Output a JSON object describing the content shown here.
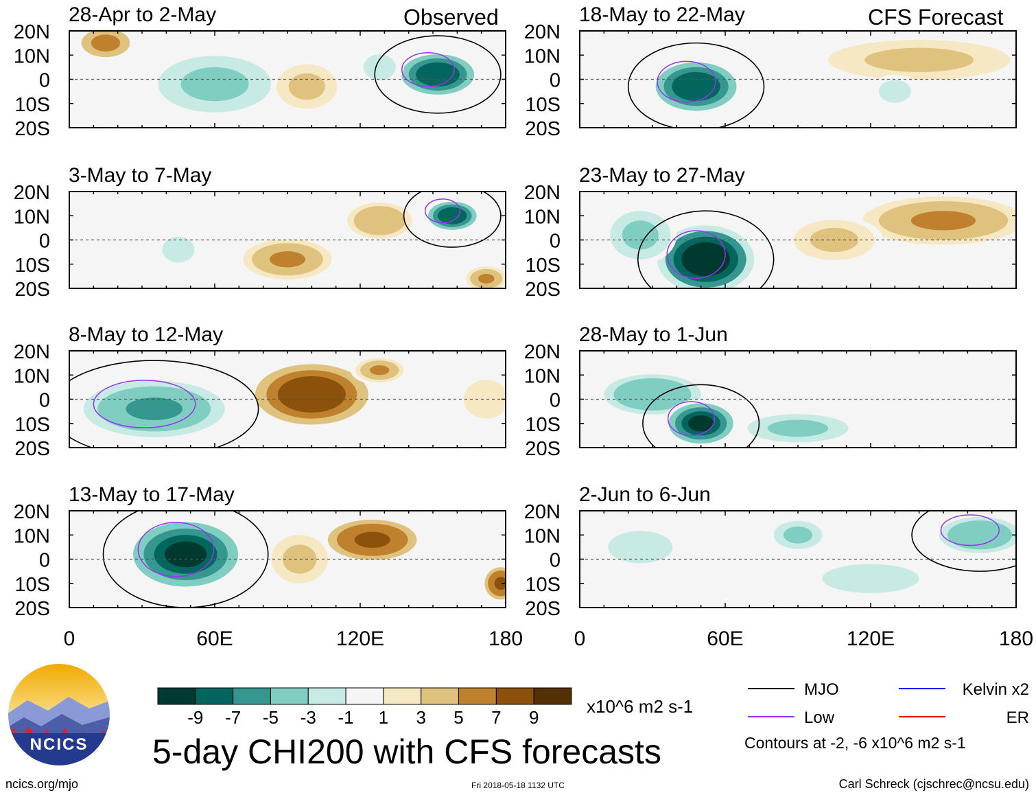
{
  "observed_label": "Observed",
  "forecast_label": "CFS Forecast",
  "colors": {
    "mjo": "#000000",
    "kelvin": "#0000ee",
    "low": "#9933ee",
    "er": "#ee0000",
    "palette": [
      "#00392f",
      "#03665e",
      "#35978f",
      "#80cdc1",
      "#c7eae5",
      "#f5f5f5",
      "#f6e8c3",
      "#dfc27d",
      "#bf812d",
      "#8c510a",
      "#543005"
    ]
  },
  "chart_data": {
    "type": "heatmap",
    "title": "5-day CHI200 with CFS forecasts",
    "variable": "CHI200",
    "units": "x10^6 m2 s-1",
    "xlim": [
      0,
      180
    ],
    "ylim": [
      -20,
      20
    ],
    "x_ticks": [
      {
        "value": 0,
        "label": "0"
      },
      {
        "value": 60,
        "label": "60E"
      },
      {
        "value": 120,
        "label": "120E"
      },
      {
        "value": 180,
        "label": "180"
      }
    ],
    "y_ticks": [
      {
        "value": 20,
        "label": "20N"
      },
      {
        "value": 10,
        "label": "10N"
      },
      {
        "value": 0,
        "label": "0"
      },
      {
        "value": -10,
        "label": "10S"
      },
      {
        "value": -20,
        "label": "20S"
      }
    ],
    "colorbar": {
      "labels": [
        "-9",
        "-7",
        "-5",
        "-3",
        "-1",
        "1",
        "3",
        "5",
        "7",
        "9"
      ]
    },
    "legend": [
      {
        "name": "MJO",
        "color": "#000000"
      },
      {
        "name": "Kelvin x2",
        "color": "#0000ee"
      },
      {
        "name": "Low",
        "color": "#9933ee"
      },
      {
        "name": "ER",
        "color": "#ee0000"
      }
    ],
    "contour_note": "Contours at -2, -6 x10^6 m2 s-1",
    "panels": [
      {
        "period": "28-Apr to 2-May",
        "source": "observed",
        "blobs": [
          [
            15,
            15,
            12,
            7,
            6
          ],
          [
            60,
            -2,
            28,
            14,
            -3
          ],
          [
            98,
            -3,
            15,
            11,
            3
          ],
          [
            152,
            2,
            18,
            10,
            -8
          ],
          [
            128,
            5,
            10,
            8,
            -2
          ]
        ]
      },
      {
        "period": "3-May to 7-May",
        "source": "observed",
        "blobs": [
          [
            90,
            -8,
            22,
            10,
            5
          ],
          [
            128,
            8,
            16,
            9,
            4
          ],
          [
            158,
            10,
            12,
            7,
            -8
          ],
          [
            172,
            -16,
            10,
            6,
            5
          ],
          [
            45,
            -4,
            10,
            8,
            -2
          ]
        ]
      },
      {
        "period": "8-May to 12-May",
        "source": "observed",
        "blobs": [
          [
            35,
            -4,
            35,
            14,
            -5
          ],
          [
            100,
            2,
            28,
            15,
            8
          ],
          [
            128,
            12,
            12,
            6,
            5
          ],
          [
            172,
            0,
            14,
            12,
            2
          ]
        ]
      },
      {
        "period": "13-May to 17-May",
        "source": "observed",
        "blobs": [
          [
            48,
            2,
            26,
            16,
            -10
          ],
          [
            125,
            8,
            22,
            10,
            7
          ],
          [
            178,
            -10,
            8,
            8,
            7
          ],
          [
            95,
            0,
            14,
            12,
            3
          ]
        ]
      },
      {
        "period": "18-May to 22-May",
        "source": "forecast",
        "blobs": [
          [
            48,
            -3,
            20,
            12,
            -8
          ],
          [
            140,
            8,
            45,
            10,
            3
          ],
          [
            130,
            -5,
            10,
            7,
            -2
          ]
        ]
      },
      {
        "period": "23-May to 27-May",
        "source": "forecast",
        "blobs": [
          [
            52,
            -8,
            20,
            14,
            -11
          ],
          [
            150,
            8,
            40,
            12,
            5
          ],
          [
            105,
            0,
            20,
            10,
            3
          ],
          [
            25,
            2,
            15,
            12,
            -3
          ]
        ]
      },
      {
        "period": "28-May to 1-Jun",
        "source": "forecast",
        "blobs": [
          [
            50,
            -10,
            16,
            10,
            -9
          ],
          [
            30,
            2,
            24,
            10,
            -4
          ],
          [
            90,
            -12,
            25,
            7,
            -3
          ],
          [
            135,
            8,
            30,
            10,
            1
          ]
        ]
      },
      {
        "period": "2-Jun to 6-Jun",
        "source": "forecast",
        "blobs": [
          [
            165,
            10,
            20,
            9,
            -4
          ],
          [
            90,
            10,
            12,
            7,
            -3
          ],
          [
            120,
            -8,
            30,
            9,
            -2
          ],
          [
            25,
            5,
            20,
            10,
            -2
          ]
        ]
      }
    ]
  },
  "footer": {
    "logo_text": "NCICS",
    "website": "ncics.org/mjo",
    "timestamp": "Fri 2018-05-18 1132 UTC",
    "author": "Carl Schreck (cjschrec@ncsu.edu)"
  }
}
